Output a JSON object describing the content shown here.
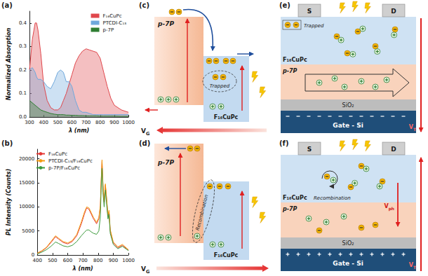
{
  "panel_letters": {
    "a": "(a)",
    "b": "(b)",
    "c": "(c)",
    "d": "(d)",
    "e": "(e)",
    "f": "(f)"
  },
  "chart_data": [
    {
      "type": "area",
      "x_label": "λ (nm)",
      "y_label": "Normalized Absorption",
      "x": [
        300,
        320,
        340,
        350,
        360,
        380,
        400,
        425,
        450,
        475,
        500,
        520,
        540,
        560,
        580,
        600,
        625,
        650,
        675,
        700,
        725,
        750,
        775,
        800,
        825,
        850,
        875,
        900,
        950,
        1000
      ],
      "series": [
        {
          "name": "F₁₆CuPc",
          "color": "#e0474c",
          "values": [
            0.2,
            0.33,
            0.4,
            0.4,
            0.37,
            0.27,
            0.14,
            0.07,
            0.04,
            0.03,
            0.03,
            0.04,
            0.07,
            0.1,
            0.14,
            0.18,
            0.23,
            0.26,
            0.28,
            0.29,
            0.285,
            0.28,
            0.275,
            0.25,
            0.19,
            0.13,
            0.08,
            0.05,
            0.03,
            0.02
          ]
        },
        {
          "name": "PTCDI-C₁₃",
          "color": "#6fa8dc",
          "values": [
            0.2,
            0.21,
            0.19,
            0.17,
            0.16,
            0.16,
            0.15,
            0.13,
            0.12,
            0.15,
            0.19,
            0.2,
            0.19,
            0.15,
            0.15,
            0.13,
            0.07,
            0.03,
            0.02,
            0.02,
            0.015,
            0.01,
            0.01,
            0.01,
            0.01,
            0.01,
            0.01,
            0.01,
            0.01,
            0.01
          ]
        },
        {
          "name": "p-7P",
          "color": "#2e7d32",
          "values": [
            0.07,
            0.06,
            0.05,
            0.045,
            0.04,
            0.03,
            0.025,
            0.02,
            0.015,
            0.012,
            0.01,
            0.01,
            0.01,
            0.008,
            0.008,
            0.007,
            0.007,
            0.006,
            0.006,
            0.005,
            0.005,
            0.005,
            0.005,
            0.004,
            0.004,
            0.004,
            0.004,
            0.004,
            0.003,
            0.003
          ]
        }
      ],
      "xlim": [
        300,
        1000
      ],
      "xticks": [
        300,
        400,
        500,
        600,
        700,
        800,
        900,
        1000
      ],
      "ylim": [
        0,
        0.45
      ],
      "yticks": [
        {
          "value": 0,
          "label": "0.0"
        },
        0.1,
        0.2,
        0.3,
        0.4
      ],
      "grid": false,
      "legend": "upper right"
    },
    {
      "type": "line",
      "x_label": "λ (nm)",
      "y_label": "PL Intensity (Counts)",
      "x": [
        400,
        430,
        460,
        490,
        520,
        540,
        570,
        600,
        630,
        660,
        690,
        710,
        725,
        740,
        755,
        770,
        790,
        805,
        815,
        820,
        826,
        832,
        840,
        848,
        855,
        865,
        872,
        880,
        900,
        930,
        960,
        1000
      ],
      "series": [
        {
          "name": "F₁₆CuPc",
          "color": "#e53935",
          "values": [
            300,
            800,
            1500,
            2600,
            3800,
            3300,
            2600,
            2300,
            2800,
            4000,
            6500,
            8500,
            9800,
            9500,
            8500,
            7500,
            6500,
            7500,
            10000,
            15000,
            19500,
            14500,
            11000,
            14500,
            12000,
            8000,
            9000,
            5000,
            2500,
            1500,
            2000,
            1000
          ]
        },
        {
          "name": "PTCDI-C₁₃/F₁₆CuPc",
          "color": "#f39c12",
          "values": [
            400,
            900,
            1600,
            2800,
            4000,
            3500,
            2800,
            2500,
            3000,
            4300,
            6900,
            8900,
            10000,
            9800,
            8800,
            7800,
            6800,
            7800,
            10300,
            15300,
            19800,
            14800,
            11300,
            14800,
            12300,
            8300,
            9300,
            5300,
            2700,
            1700,
            2200,
            1100
          ]
        },
        {
          "name": "p-7P/F₁₆CuPc",
          "color": "#3c9a3c",
          "values": [
            200,
            600,
            1100,
            1800,
            2700,
            2400,
            1900,
            1700,
            2000,
            2800,
            4000,
            4700,
            5200,
            5200,
            4800,
            4500,
            4300,
            5000,
            8000,
            13500,
            18000,
            13000,
            10000,
            13500,
            11000,
            7500,
            8500,
            4500,
            2200,
            1300,
            1800,
            900
          ]
        }
      ],
      "xlim": [
        400,
        1000
      ],
      "xticks": [
        400,
        500,
        600,
        700,
        800,
        900,
        1000
      ],
      "ylim": [
        0,
        22000
      ],
      "yticks": [
        0,
        5000,
        10000,
        15000,
        20000
      ],
      "grid": false,
      "legend": "upper left"
    }
  ],
  "diagrams": {
    "c": {
      "layers": [
        "p-7P",
        "F₁₆CuPc"
      ],
      "annotation": "Trapped",
      "bias": {
        "main": "V",
        "sub": "G"
      }
    },
    "d": {
      "layers": [
        "p-7P",
        "F₁₆CuPc"
      ],
      "annotation": "Recombination",
      "bias": {
        "main": "V",
        "sub": "G"
      }
    },
    "e": {
      "electrodes": [
        "S",
        "D"
      ],
      "layers": [
        "F₁₆CuPc",
        "p-7P",
        "SiO₂",
        "Gate - Si"
      ],
      "annotation": "Trapped",
      "voltages": [
        {
          "main": "V",
          "sub": "T"
        }
      ]
    },
    "f": {
      "electrodes": [
        "S",
        "D"
      ],
      "layers": [
        "F₁₆CuPc",
        "p-7P",
        "SiO₂",
        "Gate - Si"
      ],
      "annotation": "Recombination",
      "voltages": [
        {
          "main": "V",
          "sub": "ph"
        },
        {
          "main": "V",
          "sub": "T"
        }
      ]
    }
  }
}
